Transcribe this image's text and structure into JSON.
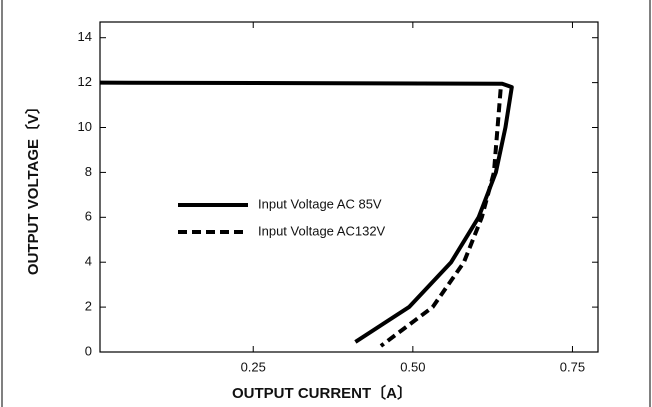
{
  "chart_data": {
    "type": "line",
    "xlabel": "OUTPUT CURRENT〔A〕",
    "ylabel": "OUTPUT VOLTAGE〔V〕",
    "xlim": [
      0.01,
      0.79
    ],
    "ylim": [
      0,
      14.7
    ],
    "xticks": [
      0.25,
      {
        "value": 0.5,
        "label": "0.50"
      },
      0.75
    ],
    "yticks": [
      0,
      2,
      4,
      6,
      8,
      10,
      12,
      14
    ],
    "series": [
      {
        "name": "Input Voltage  AC 85V",
        "color": "#000000",
        "dash": "solid",
        "x": [
          0.01,
          0.64,
          0.655,
          0.645,
          0.63,
          0.603,
          0.56,
          0.494,
          0.41
        ],
        "values": [
          12,
          11.95,
          11.8,
          10,
          8,
          6,
          4,
          2,
          0.45
        ]
      },
      {
        "name": "Input Voltage AC132V",
        "color": "#000000",
        "dash": "dashed",
        "x": [
          0.6375,
          0.627,
          0.608,
          0.58,
          0.531,
          0.45
        ],
        "values": [
          11.7,
          8,
          6,
          4,
          2,
          0.27
        ]
      }
    ]
  }
}
